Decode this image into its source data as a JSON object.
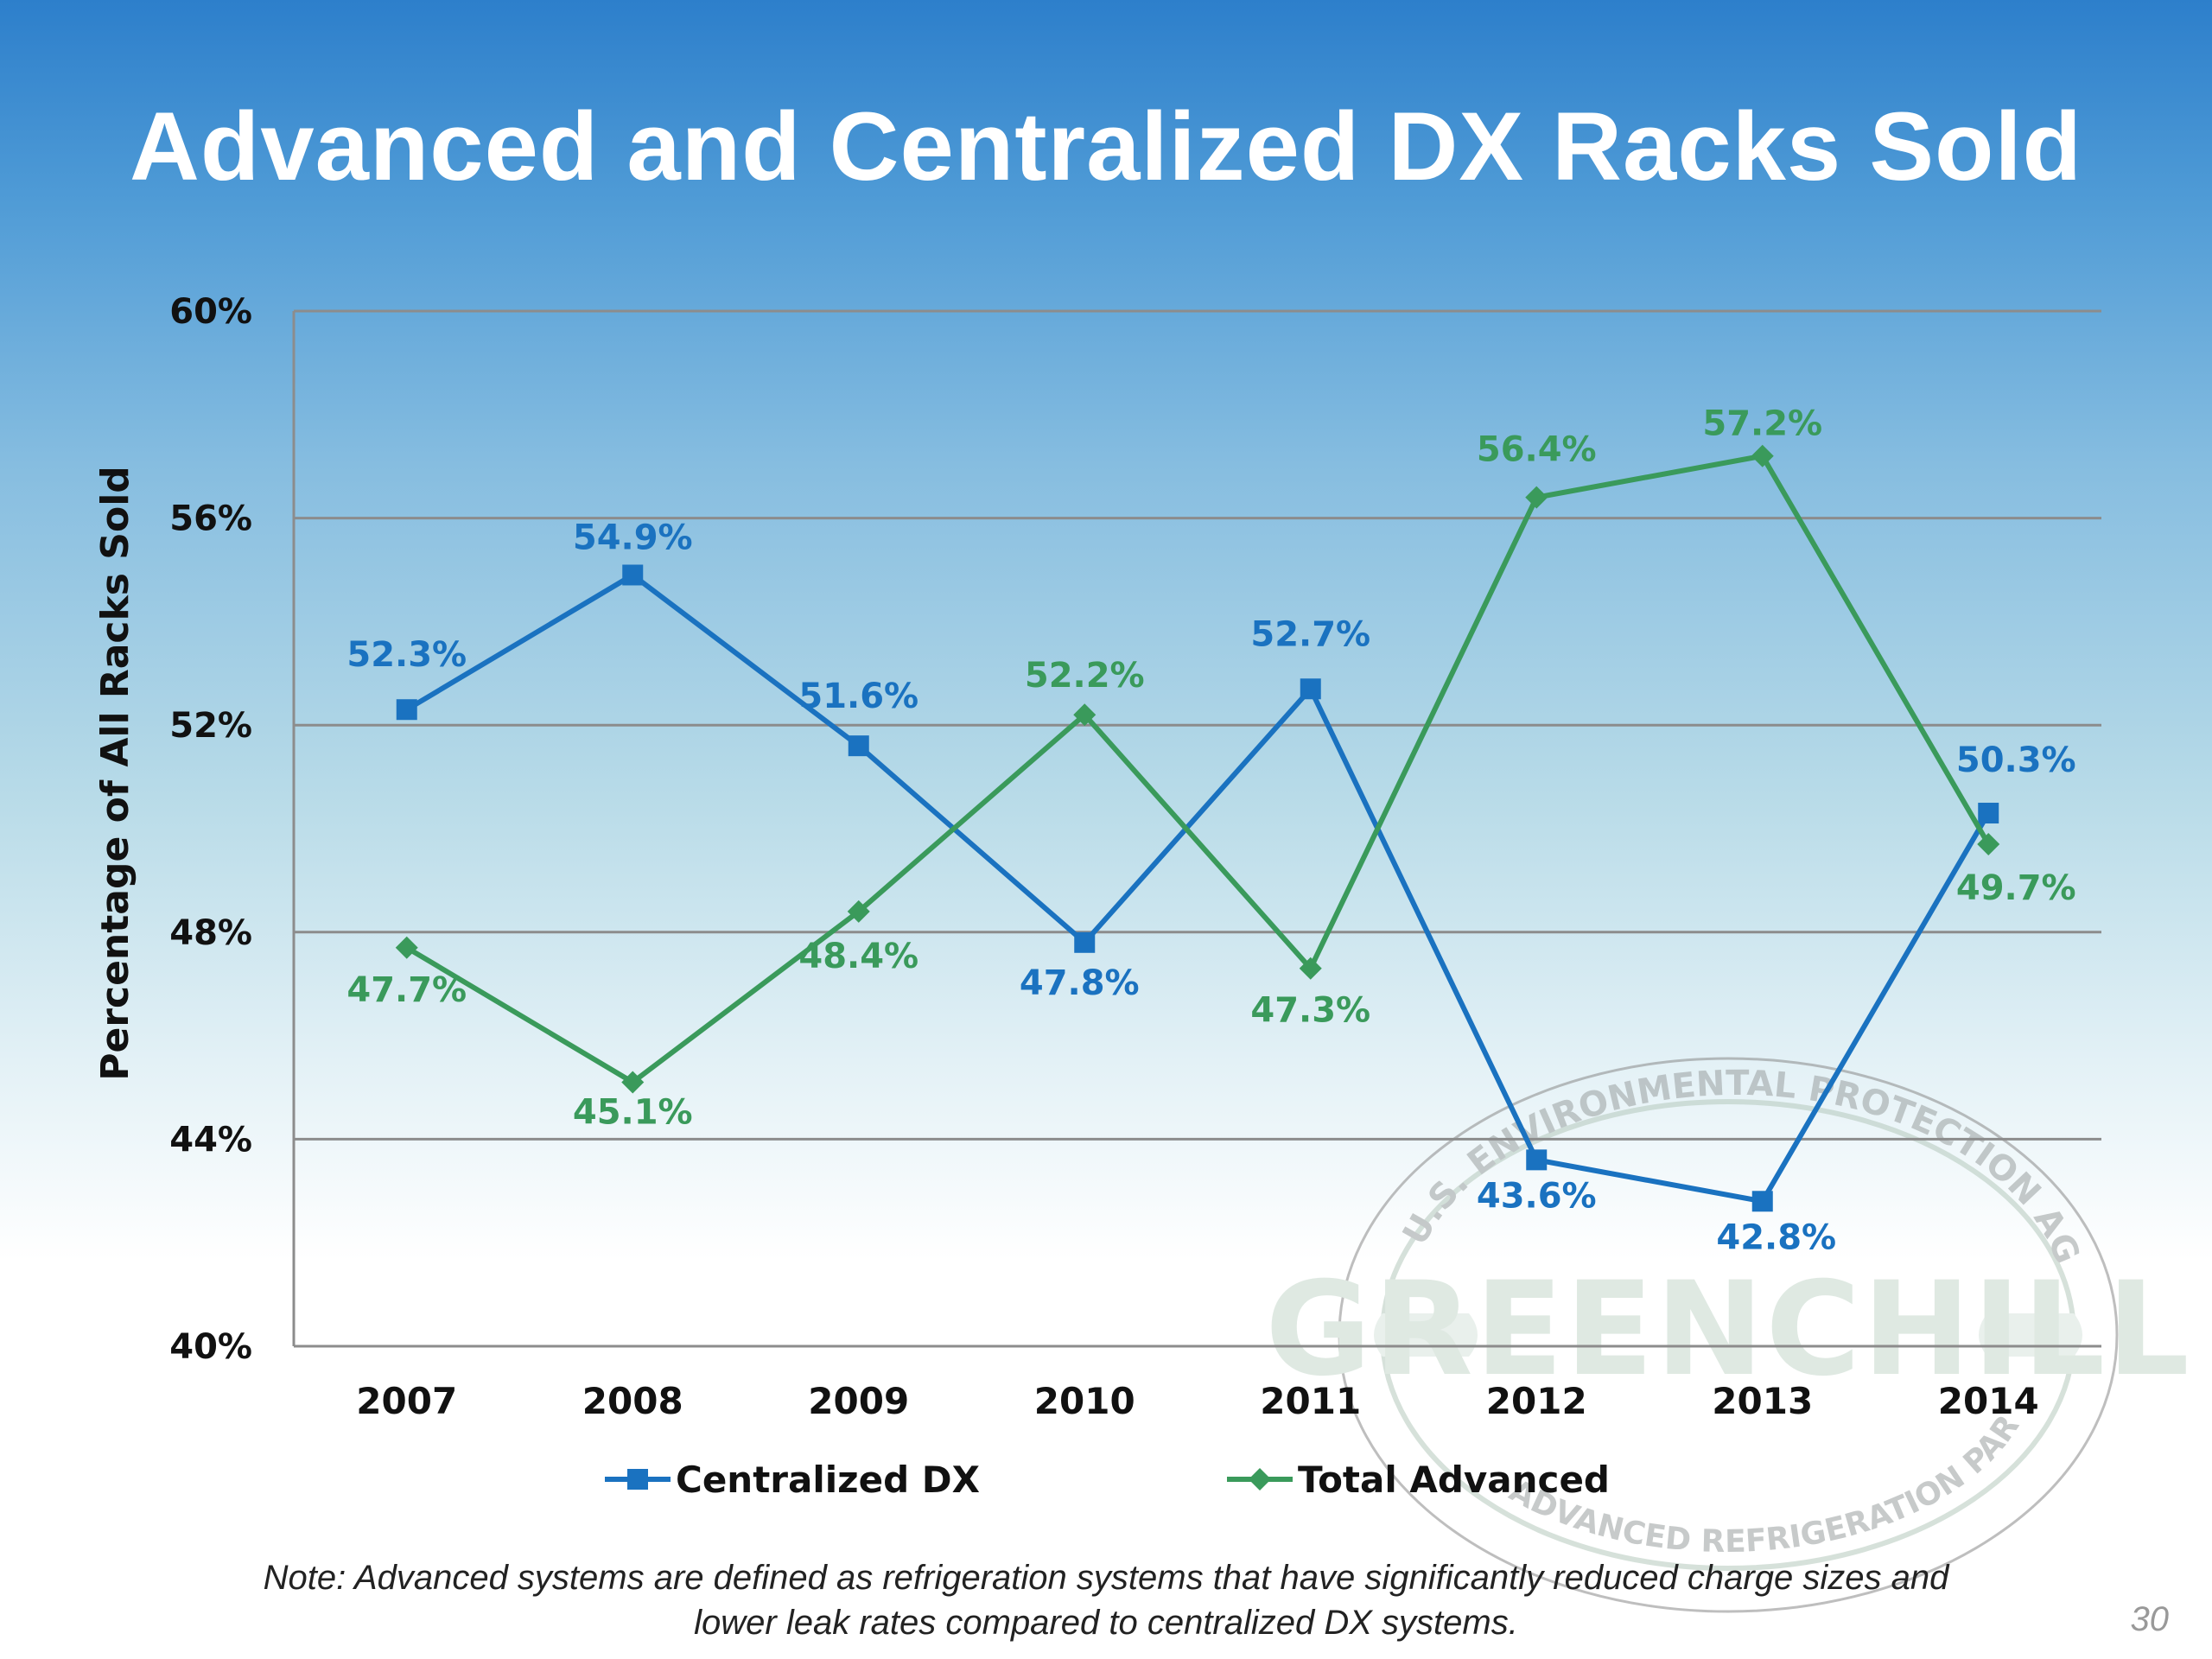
{
  "slide": {
    "title": "Advanced and Centralized DX Racks Sold",
    "note_line1": "Note: Advanced systems are defined as refrigeration systems that have significantly reduced charge sizes and",
    "note_line2": "lower leak rates compared to centralized DX systems.",
    "page_number": "30",
    "watermark": {
      "text": "GREENCHILL",
      "ring_text_top": "U.S. ENVIRONMENTAL PROTECTION AGENCY",
      "ring_text_bottom": "ADVANCED REFRIGERATION PARTNERSHIP"
    }
  },
  "chart_data": {
    "type": "line",
    "title": "Advanced and Centralized DX Racks Sold",
    "xlabel": "",
    "ylabel": "Percentage of All Racks Sold",
    "categories": [
      "2007",
      "2008",
      "2009",
      "2010",
      "2011",
      "2012",
      "2013",
      "2014"
    ],
    "yticks": [
      "40%",
      "44%",
      "48%",
      "52%",
      "56%",
      "60%"
    ],
    "ylim": [
      40,
      60
    ],
    "grid": true,
    "legend_position": "bottom",
    "series": [
      {
        "name": "Centralized DX",
        "color": "#1a72c0",
        "marker": "square",
        "values": [
          52.3,
          54.9,
          51.6,
          47.8,
          52.7,
          43.6,
          42.8,
          50.3
        ],
        "labels": [
          "52.3%",
          "54.9%",
          "51.6%",
          "47.8%",
          "52.7%",
          "43.6%",
          "42.8%",
          "50.3%"
        ]
      },
      {
        "name": "Total Advanced",
        "color": "#3a9a5b",
        "marker": "diamond",
        "values": [
          47.7,
          45.1,
          48.4,
          52.2,
          47.3,
          56.4,
          57.2,
          49.7
        ],
        "labels": [
          "47.7%",
          "45.1%",
          "48.4%",
          "52.2%",
          "47.3%",
          "56.4%",
          "57.2%",
          "49.7%"
        ]
      }
    ]
  }
}
